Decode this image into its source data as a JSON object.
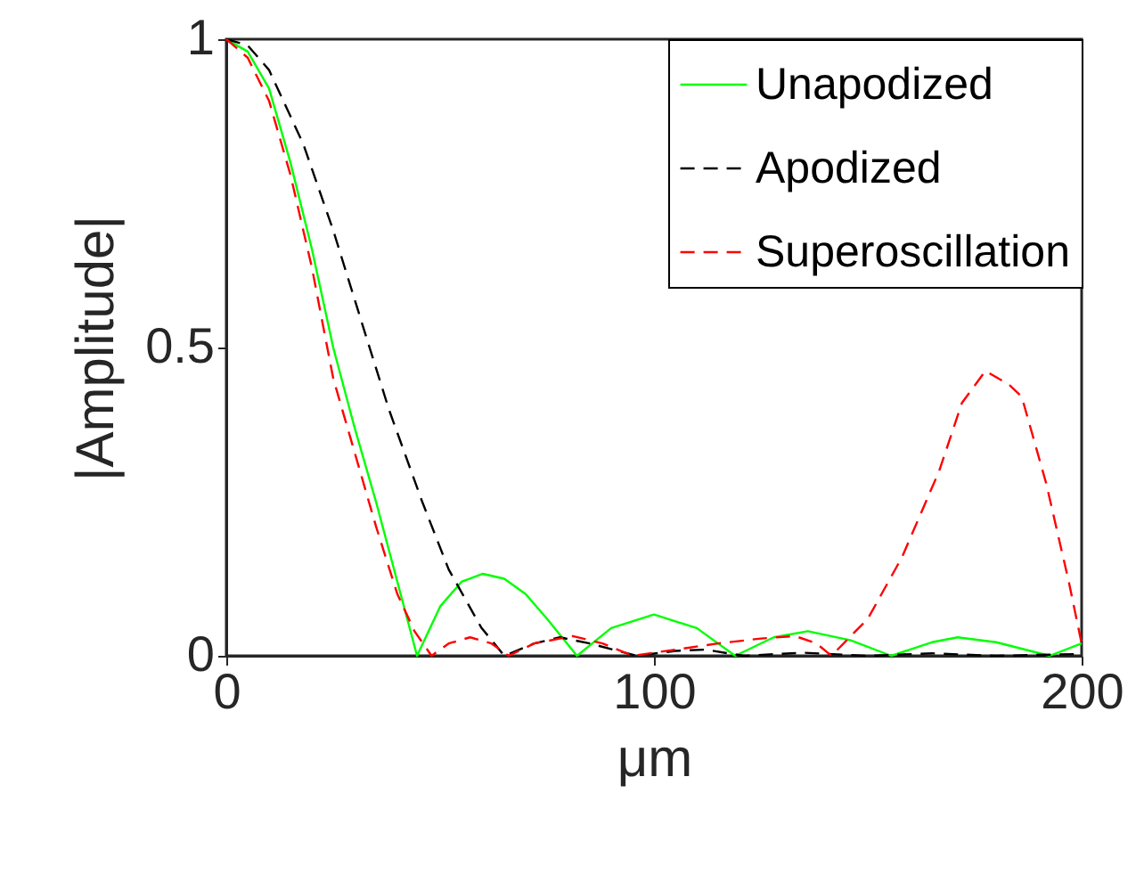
{
  "chart_data": {
    "type": "line",
    "xlabel": "μm",
    "ylabel": "|Amplitude|",
    "xlim": [
      0,
      200
    ],
    "xticks": [
      0,
      100,
      200
    ],
    "ylim": [
      0,
      1
    ],
    "yticks": [
      0,
      0.5,
      1
    ],
    "grid": false,
    "legend": "top right",
    "marker": "none",
    "series": [
      {
        "name": "Unapodized",
        "color": "#00ff00",
        "line_style": "solid",
        "x": [
          0,
          5,
          10,
          15,
          20,
          25,
          30,
          35,
          40,
          44.6,
          50,
          55,
          60,
          65,
          70,
          75,
          82,
          90,
          100,
          110,
          119,
          128,
          136,
          146,
          155.5,
          165,
          171,
          180,
          192.5,
          200
        ],
        "values": [
          1,
          0.98,
          0.92,
          0.8,
          0.66,
          0.5,
          0.37,
          0.25,
          0.12,
          0,
          0.08,
          0.12,
          0.133,
          0.125,
          0.1,
          0.06,
          0,
          0.045,
          0.067,
          0.045,
          0,
          0.03,
          0.04,
          0.025,
          0,
          0.022,
          0.03,
          0.022,
          0,
          0.02
        ]
      },
      {
        "name": "Apodized",
        "color": "#000000",
        "line_style": "dashed",
        "x": [
          0,
          5,
          10,
          18,
          25,
          31.7,
          38,
          45.8,
          52,
          59.6,
          65,
          72,
          78,
          85,
          96,
          105,
          112,
          121,
          135,
          150,
          165,
          180,
          200
        ],
        "values": [
          1,
          0.99,
          0.95,
          0.83,
          0.69,
          0.54,
          0.4,
          0.25,
          0.14,
          0.046,
          0,
          0.02,
          0.03,
          0.02,
          0,
          0.008,
          0.01,
          0,
          0.005,
          0,
          0.004,
          0,
          0.003
        ]
      },
      {
        "name": "Superoscillation",
        "color": "#ff0000",
        "line_style": "dashed",
        "x": [
          0,
          5,
          10,
          15,
          20,
          25,
          30,
          35,
          40,
          44,
          48,
          52,
          57,
          62,
          66,
          72,
          81,
          88,
          95,
          105,
          115,
          125,
          133,
          138,
          141.5,
          150,
          158,
          166.7,
          172,
          177.5,
          183,
          186,
          191.7,
          197,
          200
        ],
        "values": [
          1,
          0.97,
          0.9,
          0.78,
          0.63,
          0.45,
          0.33,
          0.21,
          0.1,
          0.04,
          0,
          0.02,
          0.03,
          0.02,
          0,
          0.02,
          0.032,
          0.02,
          0,
          0.01,
          0.02,
          0.028,
          0.032,
          0.02,
          0,
          0.06,
          0.16,
          0.3,
          0.41,
          0.462,
          0.44,
          0.42,
          0.28,
          0.12,
          0.02
        ]
      }
    ]
  }
}
